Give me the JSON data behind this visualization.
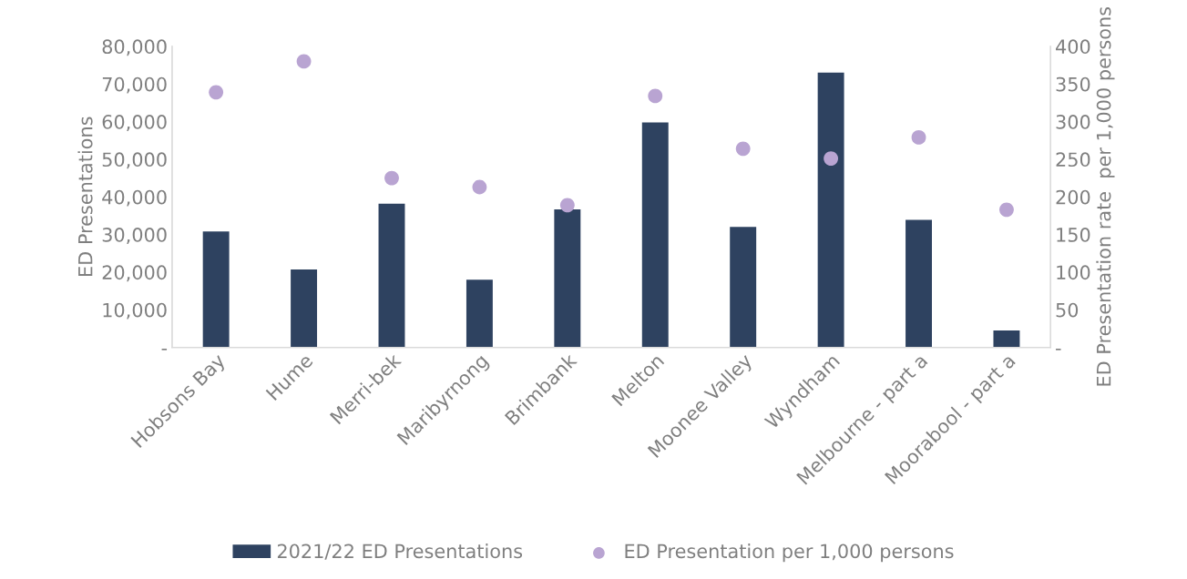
{
  "chart_data": {
    "type": "bar",
    "ylabel": "ED Presentations",
    "y2label": "ED Presentation rate  per 1,000 persons",
    "categories": [
      "Hobsons Bay",
      "Hume",
      "Merri-bek",
      "Maribyrnong",
      "Brimbank",
      "Melton",
      "Moonee Valley",
      "Wyndham",
      "Melbourne - part a",
      "Moorabool - part a"
    ],
    "series": [
      {
        "name": "2021/22 ED Presentations",
        "color": "#2e4260",
        "values": [
          30800,
          20700,
          38200,
          18000,
          36700,
          59800,
          32000,
          73000,
          33900,
          4500
        ]
      },
      {
        "name": "ED Presentation per 1,000 persons",
        "type": "scatter",
        "axis": "y2",
        "color": "#b9a4d2",
        "values": [
          339,
          380,
          225,
          213,
          189,
          334,
          264,
          251,
          279,
          183
        ]
      }
    ],
    "ylim": [
      0,
      80000
    ],
    "yticks": [
      {
        "value": 0,
        "label": "-"
      },
      {
        "value": 10000,
        "label": "10,000"
      },
      {
        "value": 20000,
        "label": "20,000"
      },
      {
        "value": 30000,
        "label": "30,000"
      },
      {
        "value": 40000,
        "label": "40,000"
      },
      {
        "value": 50000,
        "label": "50,000"
      },
      {
        "value": 60000,
        "label": "60,000"
      },
      {
        "value": 70000,
        "label": "70,000"
      },
      {
        "value": 80000,
        "label": "80,000"
      }
    ],
    "y2lim": [
      0,
      400
    ],
    "y2ticks": [
      {
        "value": 0,
        "label": "-"
      },
      50,
      100,
      150,
      200,
      250,
      300,
      350,
      400
    ],
    "grid": false,
    "legend": "bottom",
    "marker": "circle"
  }
}
